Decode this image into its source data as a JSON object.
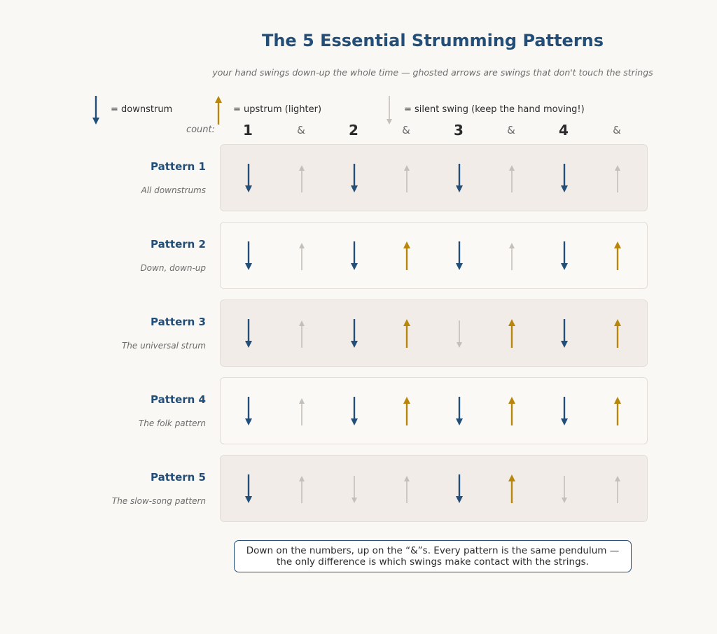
{
  "title": "The 5 Essential Strumming Patterns",
  "subtitle": "your hand swings down-up the whole time — ghosted arrows are swings that don't touch the strings",
  "legend": [
    {
      "kind": "down",
      "text": "= downstrum"
    },
    {
      "kind": "up",
      "text": "= upstrum (lighter)"
    },
    {
      "kind": "silent",
      "text": "= silent swing (keep the hand moving!)"
    }
  ],
  "count_label": "count:",
  "beats": [
    "1",
    "&",
    "2",
    "&",
    "3",
    "&",
    "4",
    "&"
  ],
  "colors": {
    "down": "#234e78",
    "up": "#b8860b",
    "ghost": "#c4bfb9"
  },
  "patterns": [
    {
      "name": "Pattern 1",
      "desc": "All downstrums",
      "strokes": [
        "down",
        "ghost-up",
        "down",
        "ghost-up",
        "down",
        "ghost-up",
        "down",
        "ghost-up"
      ]
    },
    {
      "name": "Pattern 2",
      "desc": "Down, down-up",
      "strokes": [
        "down",
        "ghost-up",
        "down",
        "up",
        "down",
        "ghost-up",
        "down",
        "up"
      ]
    },
    {
      "name": "Pattern 3",
      "desc": "The universal strum",
      "strokes": [
        "down",
        "ghost-up",
        "down",
        "up",
        "ghost-down",
        "up",
        "down",
        "up"
      ]
    },
    {
      "name": "Pattern 4",
      "desc": "The folk pattern",
      "strokes": [
        "down",
        "ghost-up",
        "down",
        "up",
        "down",
        "up",
        "down",
        "up"
      ]
    },
    {
      "name": "Pattern 5",
      "desc": "The slow-song pattern",
      "strokes": [
        "down",
        "ghost-up",
        "ghost-down",
        "ghost-up",
        "down",
        "up",
        "ghost-down",
        "ghost-up"
      ]
    }
  ],
  "note": {
    "line1": "Down on the numbers, up on the “&”s. Every pattern is the same pendulum —",
    "line2": "the only difference is which swings make contact with the strings."
  }
}
